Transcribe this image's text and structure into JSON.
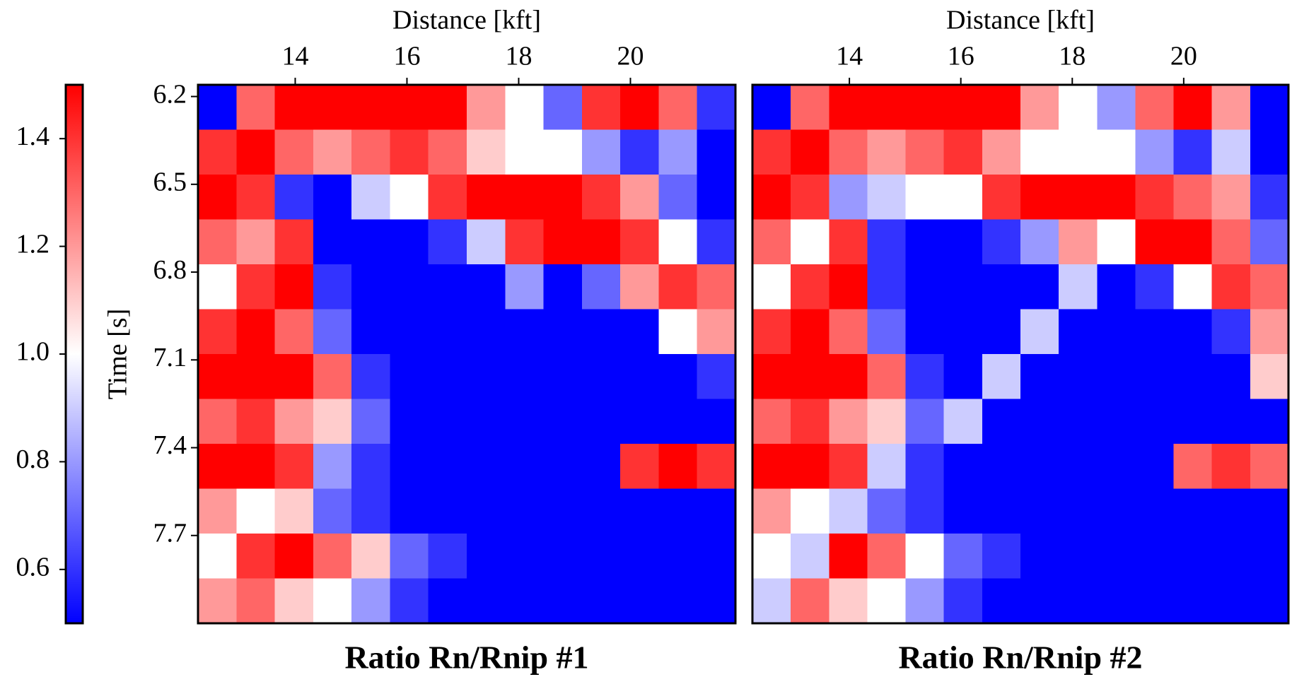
{
  "chart_data": [
    {
      "type": "heatmap",
      "title": "Ratio Rn/Rnip #1",
      "xlabel": "Distance [kft]",
      "ylabel": "Time [s]",
      "xlim": [
        12.26,
        21.88
      ],
      "ylim": [
        6.16,
        8.0
      ],
      "xticks": [
        14,
        16,
        18,
        20
      ],
      "yticks": [
        6.2,
        6.5,
        6.8,
        7.1,
        7.4,
        7.7
      ],
      "z": [
        [
          0.5,
          1.3,
          1.5,
          1.5,
          1.5,
          1.5,
          1.5,
          1.2,
          1.0,
          0.7,
          1.4,
          1.5,
          1.3,
          0.6
        ],
        [
          1.4,
          1.5,
          1.3,
          1.2,
          1.3,
          1.4,
          1.3,
          1.1,
          1.0,
          1.0,
          0.8,
          0.6,
          0.8,
          0.5
        ],
        [
          1.5,
          1.4,
          0.6,
          0.5,
          0.9,
          1.0,
          1.4,
          1.5,
          1.5,
          1.5,
          1.4,
          1.2,
          0.7,
          0.5
        ],
        [
          1.3,
          1.2,
          1.4,
          0.5,
          0.5,
          0.5,
          0.6,
          0.9,
          1.4,
          1.5,
          1.5,
          1.4,
          1.0,
          0.6
        ],
        [
          1.0,
          1.4,
          1.5,
          0.6,
          0.5,
          0.5,
          0.5,
          0.5,
          0.8,
          0.5,
          0.7,
          1.2,
          1.4,
          1.3
        ],
        [
          1.4,
          1.5,
          1.3,
          0.7,
          0.5,
          0.5,
          0.5,
          0.5,
          0.5,
          0.5,
          0.5,
          0.5,
          1.0,
          1.2
        ],
        [
          1.5,
          1.5,
          1.5,
          1.3,
          0.6,
          0.5,
          0.5,
          0.5,
          0.5,
          0.5,
          0.5,
          0.5,
          0.5,
          0.6
        ],
        [
          1.3,
          1.4,
          1.2,
          1.1,
          0.7,
          0.5,
          0.5,
          0.5,
          0.5,
          0.5,
          0.5,
          0.5,
          0.5,
          0.5
        ],
        [
          1.5,
          1.5,
          1.4,
          0.8,
          0.6,
          0.5,
          0.5,
          0.5,
          0.5,
          0.5,
          0.5,
          1.4,
          1.5,
          1.4
        ],
        [
          1.2,
          1.0,
          1.1,
          0.7,
          0.6,
          0.5,
          0.5,
          0.5,
          0.5,
          0.5,
          0.5,
          0.5,
          0.5,
          0.5
        ],
        [
          1.0,
          1.4,
          1.5,
          1.3,
          1.1,
          0.7,
          0.6,
          0.5,
          0.5,
          0.5,
          0.5,
          0.5,
          0.5,
          0.5
        ],
        [
          1.2,
          1.3,
          1.1,
          1.0,
          0.8,
          0.6,
          0.5,
          0.5,
          0.5,
          0.5,
          0.5,
          0.5,
          0.5,
          0.5
        ]
      ]
    },
    {
      "type": "heatmap",
      "title": "Ratio Rn/Rnip #2",
      "xlabel": "Distance [kft]",
      "xlim": [
        12.26,
        21.88
      ],
      "ylim": [
        6.16,
        8.0
      ],
      "xticks": [
        14,
        16,
        18,
        20
      ],
      "z": [
        [
          0.5,
          1.3,
          1.5,
          1.5,
          1.5,
          1.5,
          1.5,
          1.2,
          1.0,
          0.8,
          1.3,
          1.5,
          1.2,
          0.5
        ],
        [
          1.4,
          1.5,
          1.3,
          1.2,
          1.3,
          1.4,
          1.2,
          1.0,
          1.0,
          1.0,
          0.8,
          0.6,
          0.9,
          0.5
        ],
        [
          1.5,
          1.4,
          0.8,
          0.9,
          1.0,
          1.0,
          1.4,
          1.5,
          1.5,
          1.5,
          1.4,
          1.3,
          1.2,
          0.6
        ],
        [
          1.3,
          1.0,
          1.4,
          0.6,
          0.5,
          0.5,
          0.6,
          0.8,
          1.2,
          1.0,
          1.5,
          1.5,
          1.3,
          0.7
        ],
        [
          1.0,
          1.4,
          1.5,
          0.6,
          0.5,
          0.5,
          0.5,
          0.5,
          0.9,
          0.5,
          0.6,
          1.0,
          1.4,
          1.3
        ],
        [
          1.4,
          1.5,
          1.3,
          0.7,
          0.5,
          0.5,
          0.5,
          0.9,
          0.5,
          0.5,
          0.5,
          0.5,
          0.6,
          1.2
        ],
        [
          1.5,
          1.5,
          1.5,
          1.3,
          0.6,
          0.5,
          0.9,
          0.5,
          0.5,
          0.5,
          0.5,
          0.5,
          0.5,
          1.1
        ],
        [
          1.3,
          1.4,
          1.2,
          1.1,
          0.7,
          0.9,
          0.5,
          0.5,
          0.5,
          0.5,
          0.5,
          0.5,
          0.5,
          0.5
        ],
        [
          1.5,
          1.5,
          1.4,
          0.9,
          0.6,
          0.5,
          0.5,
          0.5,
          0.5,
          0.5,
          0.5,
          1.3,
          1.4,
          1.3
        ],
        [
          1.2,
          1.0,
          0.9,
          0.7,
          0.6,
          0.5,
          0.5,
          0.5,
          0.5,
          0.5,
          0.5,
          0.5,
          0.5,
          0.5
        ],
        [
          1.0,
          0.9,
          1.5,
          1.3,
          1.0,
          0.7,
          0.6,
          0.5,
          0.5,
          0.5,
          0.5,
          0.5,
          0.5,
          0.5
        ],
        [
          0.9,
          1.3,
          1.1,
          1.0,
          0.8,
          0.6,
          0.5,
          0.5,
          0.5,
          0.5,
          0.5,
          0.5,
          0.5,
          0.5
        ]
      ]
    }
  ],
  "colorbar": {
    "lim": [
      0.5,
      1.5
    ],
    "colors": [
      "#0000ff",
      "#ffffff",
      "#ff0000"
    ],
    "ticks": [
      {
        "value": 0.6,
        "label": "0.6"
      },
      {
        "value": 0.8,
        "label": "0.8"
      },
      {
        "value": 1,
        "label": "1.0"
      },
      {
        "value": 1.2,
        "label": "1.2"
      },
      {
        "value": 1.4,
        "label": "1.4"
      }
    ]
  }
}
